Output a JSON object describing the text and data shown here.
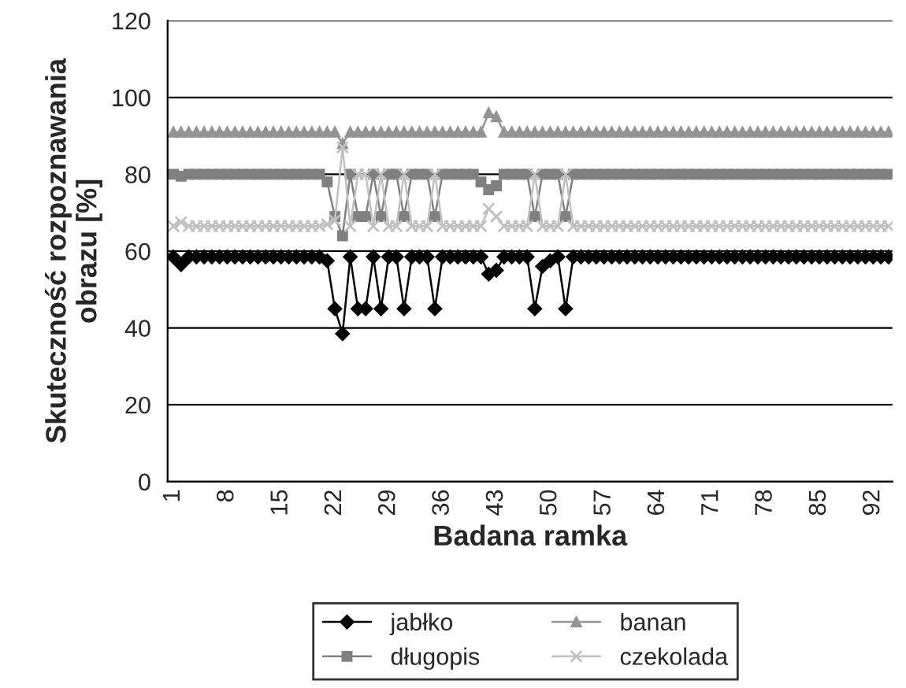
{
  "chart_data": {
    "type": "line",
    "ylabel": "Skuteczność rozpoznawania\nobrazu [%]",
    "xlabel": "Badana ramka",
    "categories": [
      "1",
      null,
      null,
      null,
      null,
      null,
      null,
      "8",
      null,
      null,
      null,
      null,
      null,
      null,
      "15",
      null,
      null,
      null,
      null,
      null,
      null,
      "22",
      null,
      null,
      null,
      null,
      null,
      null,
      "29",
      null,
      null,
      null,
      null,
      null,
      null,
      "36",
      null,
      null,
      null,
      null,
      null,
      null,
      "43",
      null,
      null,
      null,
      null,
      null,
      null,
      "50",
      null,
      null,
      null,
      null,
      null,
      null,
      "57",
      null,
      null,
      null,
      null,
      null,
      null,
      "64",
      null,
      null,
      null,
      null,
      null,
      null,
      "71",
      null,
      null,
      null,
      null,
      null,
      null,
      "78",
      null,
      null,
      null,
      null,
      null,
      null,
      "85",
      null,
      null,
      null,
      null,
      null,
      null,
      "92",
      null,
      null
    ],
    "ylim": [
      0,
      120
    ],
    "yticks": [
      0,
      20,
      40,
      60,
      80,
      100,
      120
    ],
    "grid": "y",
    "legend": "bottom",
    "series": [
      {
        "name": "jabłko",
        "color": "#000000",
        "marker": "diamond",
        "values": [
          58.5,
          56.5,
          58.5,
          58.5,
          58.5,
          58.5,
          58.5,
          58.5,
          58.5,
          58.5,
          58.5,
          58.5,
          58.5,
          58.5,
          58.5,
          58.5,
          58.5,
          58.5,
          58.5,
          58.5,
          57.5,
          45,
          38.5,
          58.5,
          45,
          45,
          58.5,
          45,
          58.5,
          58.5,
          45,
          58.5,
          58.5,
          58.5,
          45,
          58.5,
          58.5,
          58.5,
          58.5,
          58.5,
          58.5,
          54,
          55,
          58.5,
          58.5,
          58.5,
          58.5,
          45,
          56,
          57.5,
          58.5,
          45,
          58.5,
          58.5,
          58.5,
          58.5,
          58.5,
          58.5,
          58.5,
          58.5,
          58.5,
          58.5,
          58.5,
          58.5,
          58.5,
          58.5,
          58.5,
          58.5,
          58.5,
          58.5,
          58.5,
          58.5,
          58.5,
          58.5,
          58.5,
          58.5,
          58.5,
          58.5,
          58.5,
          58.5,
          58.5,
          58.5,
          58.5,
          58.5,
          58.5,
          58.5,
          58.5,
          58.5,
          58.5,
          58.5,
          58.5,
          58.5,
          58.5,
          58.5
        ]
      },
      {
        "name": "długopis",
        "color": "#808080",
        "marker": "square",
        "values": [
          80,
          79.5,
          80,
          80,
          80,
          80,
          80,
          80,
          80,
          80,
          80,
          80,
          80,
          80,
          80,
          80,
          80,
          80,
          80,
          80,
          78,
          69,
          64,
          80,
          69,
          69,
          80,
          69,
          80,
          80,
          69,
          80,
          80,
          80,
          69,
          80,
          80,
          80,
          80,
          80,
          78,
          76,
          77,
          80,
          80,
          80,
          80,
          69,
          80,
          80,
          80,
          69,
          80,
          80,
          80,
          80,
          80,
          80,
          80,
          80,
          80,
          80,
          80,
          80,
          80,
          80,
          80,
          80,
          80,
          80,
          80,
          80,
          80,
          80,
          80,
          80,
          80,
          80,
          80,
          80,
          80,
          80,
          80,
          80,
          80,
          80,
          80,
          80,
          80,
          80,
          80,
          80,
          80,
          80
        ]
      },
      {
        "name": "banan",
        "color": "#939393",
        "marker": "triangle",
        "values": [
          91,
          91,
          91,
          91,
          91,
          91,
          91,
          91,
          91,
          91,
          91,
          91,
          91,
          91,
          91,
          91,
          91,
          91,
          91,
          91,
          91,
          91,
          88,
          91,
          91,
          91,
          91,
          91,
          91,
          91,
          91,
          91,
          91,
          91,
          91,
          91,
          91,
          91,
          91,
          91,
          91,
          96,
          95,
          91,
          91,
          91,
          91,
          91,
          91,
          91,
          91,
          91,
          91,
          91,
          91,
          91,
          91,
          91,
          91,
          91,
          91,
          91,
          91,
          91,
          91,
          91,
          91,
          91,
          91,
          91,
          91,
          91,
          91,
          91,
          91,
          91,
          91,
          91,
          91,
          91,
          91,
          91,
          91,
          91,
          91,
          91,
          91,
          91,
          91,
          91,
          91,
          91,
          91,
          91
        ]
      },
      {
        "name": "czekolada",
        "color": "#c0c0c0",
        "marker": "cross",
        "values": [
          66.5,
          67.5,
          66.5,
          66.5,
          66.5,
          66.5,
          66.5,
          66.5,
          66.5,
          66.5,
          66.5,
          66.5,
          66.5,
          66.5,
          66.5,
          66.5,
          66.5,
          66.5,
          66.5,
          66.5,
          67,
          68,
          87,
          66.5,
          80,
          80,
          66.5,
          80,
          66.5,
          66.5,
          80,
          66.5,
          66.5,
          66.5,
          80,
          66.5,
          66.5,
          66.5,
          66.5,
          66.5,
          66.5,
          71,
          69,
          66.5,
          66.5,
          66.5,
          66.5,
          80,
          66.5,
          66.5,
          66.5,
          80,
          66.5,
          66.5,
          66.5,
          66.5,
          66.5,
          66.5,
          66.5,
          66.5,
          66.5,
          66.5,
          66.5,
          66.5,
          66.5,
          66.5,
          66.5,
          66.5,
          66.5,
          66.5,
          66.5,
          66.5,
          66.5,
          66.5,
          66.5,
          66.5,
          66.5,
          66.5,
          66.5,
          66.5,
          66.5,
          66.5,
          66.5,
          66.5,
          66.5,
          66.5,
          66.5,
          66.5,
          66.5,
          66.5,
          66.5,
          66.5,
          66.5,
          66.5
        ]
      }
    ]
  }
}
